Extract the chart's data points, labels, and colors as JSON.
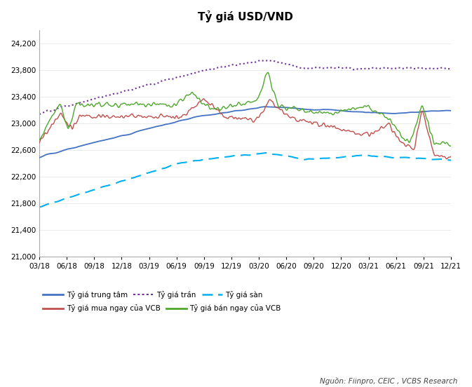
{
  "title": "Tỷ giá USD/VND",
  "ylim": [
    21000,
    24400
  ],
  "yticks": [
    21000,
    21400,
    21800,
    22200,
    22600,
    23000,
    23400,
    23800,
    24200
  ],
  "xtick_labels": [
    "03/18",
    "06/18",
    "09/18",
    "12/18",
    "03/19",
    "06/19",
    "09/19",
    "12/19",
    "03/20",
    "06/20",
    "09/20",
    "12/20",
    "03/21",
    "06/21",
    "09/21",
    "12/21"
  ],
  "source_text": "Nguồn: Fiinpro, CEIC , VCBS Research",
  "legend_entries": [
    {
      "label": "Tỷ giá trung tâm",
      "color": "#4472C4",
      "linestyle": "solid",
      "linewidth": 1.3
    },
    {
      "label": "Tỷ giá trần",
      "color": "#7030A0",
      "linestyle": "dotted",
      "linewidth": 1.5
    },
    {
      "label": "Tỷ giá sàn",
      "color": "#00B0F0",
      "linestyle": "dashed",
      "linewidth": 1.5
    },
    {
      "label": "Tỷ giá mua ngay của VCB",
      "color": "#C0504D",
      "linestyle": "solid",
      "linewidth": 1.0
    },
    {
      "label": "Tỷ giá bán ngay của VCB",
      "color": "#4EA72A",
      "linestyle": "solid",
      "linewidth": 1.0
    }
  ],
  "background_color": "#FFFFFF"
}
